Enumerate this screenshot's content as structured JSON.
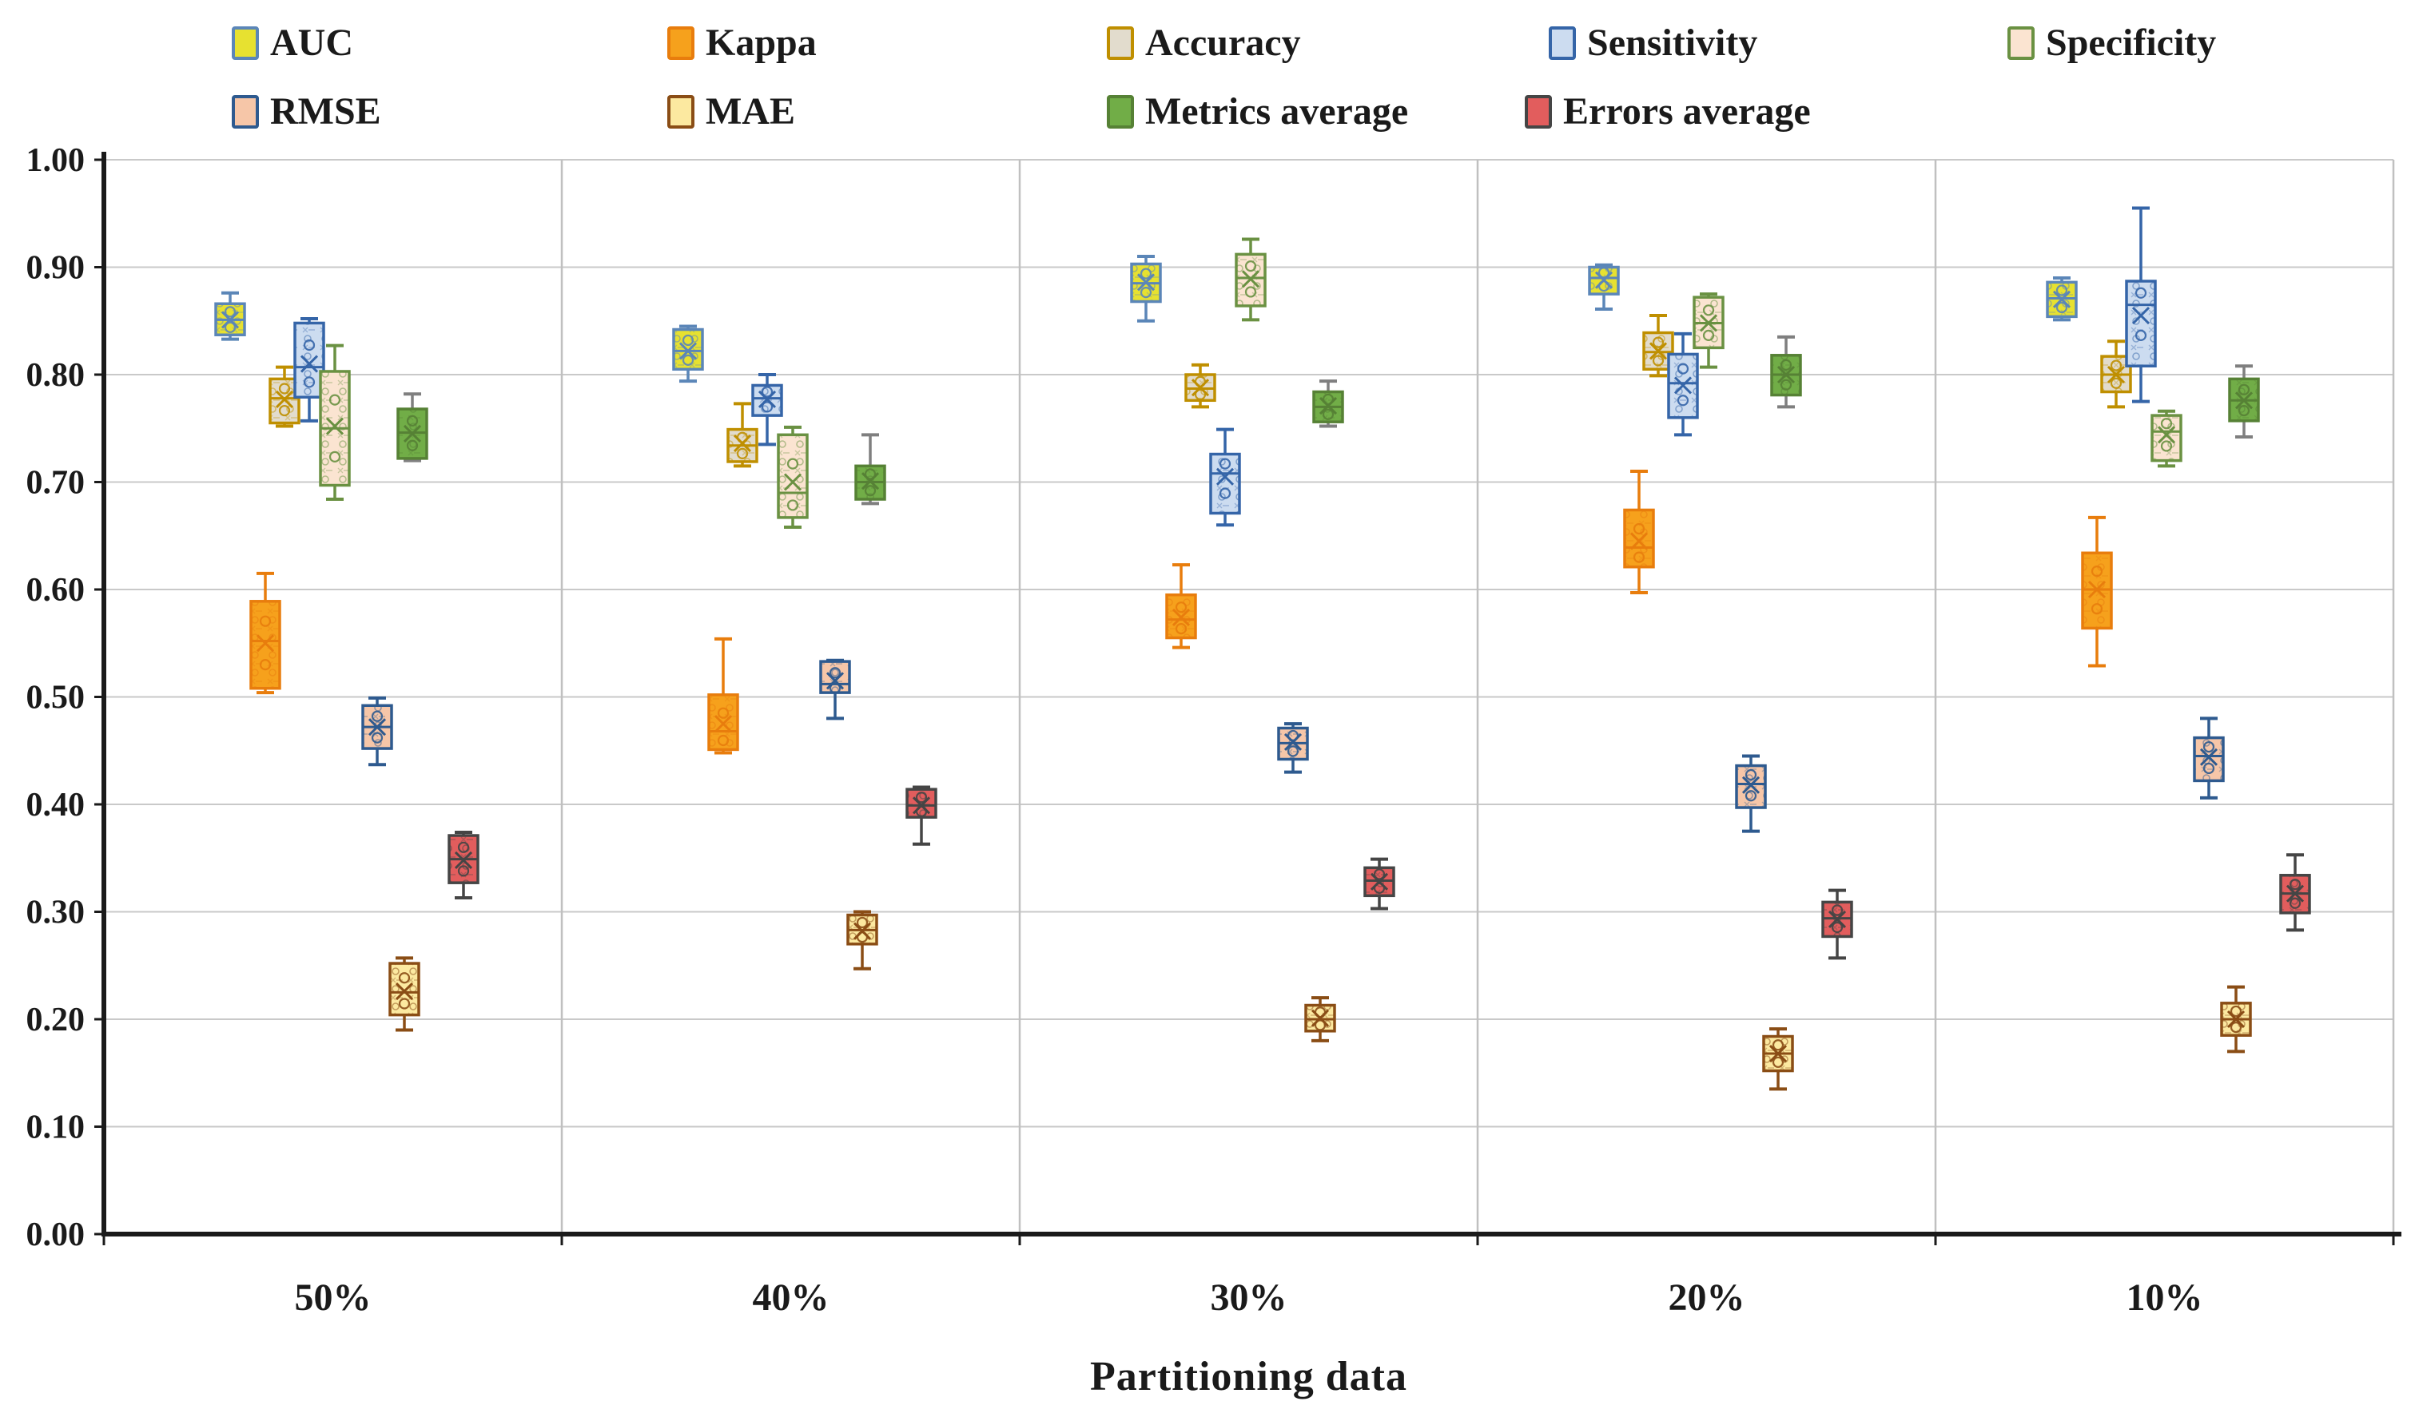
{
  "chart_data": {
    "type": "box",
    "title": "",
    "xlabel": "Partitioning data",
    "ylabel": "",
    "ylim": [
      0.0,
      1.0
    ],
    "ytick_step": 0.1,
    "grid": true,
    "legend_position": "top",
    "yticks": [
      "1.00",
      "0.90",
      "0.80",
      "0.70",
      "0.60",
      "0.50",
      "0.40",
      "0.30",
      "0.20",
      "0.10",
      "0.00"
    ],
    "categories": [
      "50%",
      "40%",
      "30%",
      "20%",
      "10%"
    ],
    "legend_rows": [
      [
        "AUC",
        "Kappa",
        "Accuracy",
        "Sensitivity",
        "Specificity"
      ],
      [
        "RMSE",
        "MAE",
        "Metrics average",
        "Errors average"
      ]
    ],
    "series": [
      {
        "name": "AUC",
        "fill": "#e7e130",
        "border": "#5b86b8",
        "whisker": "#5b86b8",
        "boxes": [
          {
            "low": 0.833,
            "q1": 0.837,
            "median": 0.851,
            "q3": 0.866,
            "high": 0.876,
            "mean": 0.851
          },
          {
            "low": 0.794,
            "q1": 0.805,
            "median": 0.822,
            "q3": 0.842,
            "high": 0.845,
            "mean": 0.822
          },
          {
            "low": 0.85,
            "q1": 0.868,
            "median": 0.885,
            "q3": 0.903,
            "high": 0.91,
            "mean": 0.886
          },
          {
            "low": 0.861,
            "q1": 0.875,
            "median": 0.89,
            "q3": 0.9,
            "high": 0.902,
            "mean": 0.888
          },
          {
            "low": 0.851,
            "q1": 0.854,
            "median": 0.871,
            "q3": 0.886,
            "high": 0.89,
            "mean": 0.87
          }
        ]
      },
      {
        "name": "Kappa",
        "fill": "#f6a11c",
        "border": "#e87d0d",
        "whisker": "#e87d0d",
        "boxes": [
          {
            "low": 0.504,
            "q1": 0.508,
            "median": 0.552,
            "q3": 0.589,
            "high": 0.615,
            "mean": 0.55
          },
          {
            "low": 0.448,
            "q1": 0.451,
            "median": 0.468,
            "q3": 0.502,
            "high": 0.554,
            "mean": 0.475
          },
          {
            "low": 0.546,
            "q1": 0.555,
            "median": 0.572,
            "q3": 0.595,
            "high": 0.623,
            "mean": 0.574
          },
          {
            "low": 0.597,
            "q1": 0.621,
            "median": 0.639,
            "q3": 0.674,
            "high": 0.71,
            "mean": 0.645
          },
          {
            "low": 0.529,
            "q1": 0.564,
            "median": 0.6,
            "q3": 0.634,
            "high": 0.667,
            "mean": 0.6
          }
        ]
      },
      {
        "name": "Accuracy",
        "fill": "#e2dccd",
        "border": "#bf8f00",
        "whisker": "#bf8f00",
        "boxes": [
          {
            "low": 0.752,
            "q1": 0.755,
            "median": 0.778,
            "q3": 0.796,
            "high": 0.807,
            "mean": 0.777
          },
          {
            "low": 0.715,
            "q1": 0.719,
            "median": 0.734,
            "q3": 0.749,
            "high": 0.773,
            "mean": 0.736
          },
          {
            "low": 0.77,
            "q1": 0.776,
            "median": 0.787,
            "q3": 0.8,
            "high": 0.809,
            "mean": 0.788
          },
          {
            "low": 0.799,
            "q1": 0.805,
            "median": 0.821,
            "q3": 0.839,
            "high": 0.855,
            "mean": 0.822
          },
          {
            "low": 0.77,
            "q1": 0.784,
            "median": 0.8,
            "q3": 0.817,
            "high": 0.831,
            "mean": 0.8
          }
        ]
      },
      {
        "name": "Sensitivity",
        "fill": "#ccdcf0",
        "border": "#3565a8",
        "whisker": "#3565a8",
        "boxes": [
          {
            "low": 0.757,
            "q1": 0.779,
            "median": 0.807,
            "q3": 0.848,
            "high": 0.852,
            "mean": 0.81
          },
          {
            "low": 0.735,
            "q1": 0.762,
            "median": 0.778,
            "q3": 0.79,
            "high": 0.8,
            "mean": 0.777
          },
          {
            "low": 0.66,
            "q1": 0.671,
            "median": 0.708,
            "q3": 0.726,
            "high": 0.749,
            "mean": 0.705
          },
          {
            "low": 0.744,
            "q1": 0.76,
            "median": 0.792,
            "q3": 0.819,
            "high": 0.838,
            "mean": 0.79
          },
          {
            "low": 0.775,
            "q1": 0.808,
            "median": 0.865,
            "q3": 0.887,
            "high": 0.955,
            "mean": 0.855
          }
        ]
      },
      {
        "name": "Specificity",
        "fill": "#fbe4d1",
        "border": "#6a9142",
        "whisker": "#6a9142",
        "boxes": [
          {
            "low": 0.684,
            "q1": 0.697,
            "median": 0.75,
            "q3": 0.803,
            "high": 0.827,
            "mean": 0.752
          },
          {
            "low": 0.658,
            "q1": 0.667,
            "median": 0.69,
            "q3": 0.744,
            "high": 0.751,
            "mean": 0.7
          },
          {
            "low": 0.851,
            "q1": 0.864,
            "median": 0.89,
            "q3": 0.912,
            "high": 0.926,
            "mean": 0.889
          },
          {
            "low": 0.807,
            "q1": 0.825,
            "median": 0.848,
            "q3": 0.872,
            "high": 0.875,
            "mean": 0.848
          },
          {
            "low": 0.715,
            "q1": 0.72,
            "median": 0.747,
            "q3": 0.762,
            "high": 0.766,
            "mean": 0.744
          }
        ]
      },
      {
        "name": "RMSE",
        "fill": "#f6c6a8",
        "border": "#2e5a8f",
        "whisker": "#2e5a8f",
        "boxes": [
          {
            "low": 0.437,
            "q1": 0.452,
            "median": 0.472,
            "q3": 0.492,
            "high": 0.499,
            "mean": 0.472
          },
          {
            "low": 0.48,
            "q1": 0.504,
            "median": 0.512,
            "q3": 0.533,
            "high": 0.534,
            "mean": 0.515
          },
          {
            "low": 0.43,
            "q1": 0.442,
            "median": 0.457,
            "q3": 0.471,
            "high": 0.475,
            "mean": 0.458
          },
          {
            "low": 0.375,
            "q1": 0.397,
            "median": 0.419,
            "q3": 0.436,
            "high": 0.445,
            "mean": 0.418
          },
          {
            "low": 0.406,
            "q1": 0.422,
            "median": 0.445,
            "q3": 0.462,
            "high": 0.48,
            "mean": 0.444
          }
        ]
      },
      {
        "name": "MAE",
        "fill": "#fce9a0",
        "border": "#8a4d15",
        "whisker": "#8a4d15",
        "boxes": [
          {
            "low": 0.19,
            "q1": 0.204,
            "median": 0.225,
            "q3": 0.252,
            "high": 0.257,
            "mean": 0.226
          },
          {
            "low": 0.247,
            "q1": 0.27,
            "median": 0.283,
            "q3": 0.297,
            "high": 0.3,
            "mean": 0.282
          },
          {
            "low": 0.18,
            "q1": 0.189,
            "median": 0.2,
            "q3": 0.213,
            "high": 0.22,
            "mean": 0.201
          },
          {
            "low": 0.135,
            "q1": 0.152,
            "median": 0.168,
            "q3": 0.184,
            "high": 0.191,
            "mean": 0.168
          },
          {
            "low": 0.17,
            "q1": 0.185,
            "median": 0.2,
            "q3": 0.215,
            "high": 0.23,
            "mean": 0.2
          }
        ]
      },
      {
        "name": "Metrics average",
        "fill": "#71ad47",
        "border": "#568135",
        "whisker": "#7f7f7f",
        "boxes": [
          {
            "low": 0.72,
            "q1": 0.722,
            "median": 0.746,
            "q3": 0.768,
            "high": 0.782,
            "mean": 0.745
          },
          {
            "low": 0.68,
            "q1": 0.684,
            "median": 0.7,
            "q3": 0.715,
            "high": 0.744,
            "mean": 0.701
          },
          {
            "low": 0.752,
            "q1": 0.756,
            "median": 0.77,
            "q3": 0.784,
            "high": 0.794,
            "mean": 0.771
          },
          {
            "low": 0.77,
            "q1": 0.781,
            "median": 0.8,
            "q3": 0.818,
            "high": 0.835,
            "mean": 0.8
          },
          {
            "low": 0.742,
            "q1": 0.757,
            "median": 0.776,
            "q3": 0.796,
            "high": 0.808,
            "mean": 0.776
          }
        ]
      },
      {
        "name": "Errors average",
        "fill": "#e25d5d",
        "border": "#454545",
        "whisker": "#454545",
        "boxes": [
          {
            "low": 0.313,
            "q1": 0.327,
            "median": 0.349,
            "q3": 0.371,
            "high": 0.374,
            "mean": 0.348
          },
          {
            "low": 0.363,
            "q1": 0.388,
            "median": 0.399,
            "q3": 0.414,
            "high": 0.416,
            "mean": 0.399
          },
          {
            "low": 0.303,
            "q1": 0.315,
            "median": 0.329,
            "q3": 0.341,
            "high": 0.349,
            "mean": 0.328
          },
          {
            "low": 0.257,
            "q1": 0.277,
            "median": 0.294,
            "q3": 0.309,
            "high": 0.32,
            "mean": 0.293
          },
          {
            "low": 0.283,
            "q1": 0.299,
            "median": 0.317,
            "q3": 0.334,
            "high": 0.353,
            "mean": 0.317
          }
        ]
      }
    ]
  }
}
